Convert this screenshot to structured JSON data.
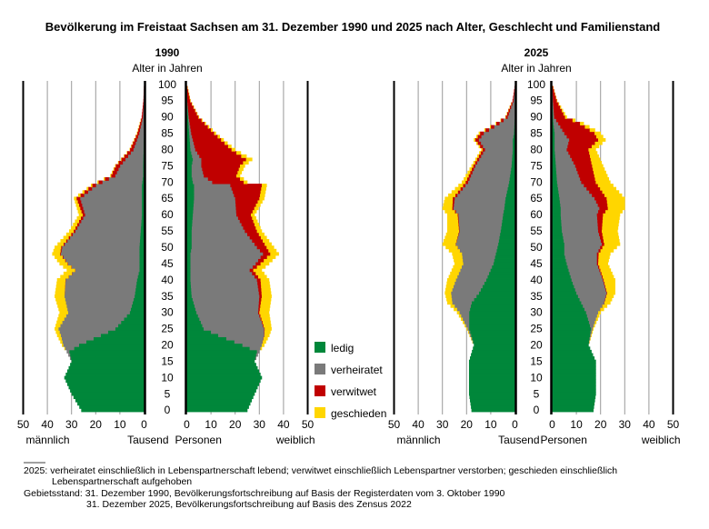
{
  "title": "Bevölkerung im Freistaat Sachsen am 31. Dezember 1990 und 2025 nach Alter, Geschlecht und Familienstand",
  "colors": {
    "ledig": "#00873a",
    "verheiratet": "#7a7a7a",
    "verwitwet": "#c00000",
    "geschieden": "#ffd600",
    "grid": "#9a9a9a",
    "axis": "#000000"
  },
  "labels": {
    "age_axis": "Alter in Jahren",
    "male": "männlich",
    "female": "weiblich",
    "unit_left": "Tausend",
    "unit_right": "Personen"
  },
  "legend": [
    {
      "key": "ledig",
      "label": "ledig"
    },
    {
      "key": "verheiratet",
      "label": "verheiratet"
    },
    {
      "key": "verwitwet",
      "label": "verwitwet"
    },
    {
      "key": "geschieden",
      "label": "geschieden"
    }
  ],
  "notes": {
    "n1": "2025: verheiratet einschließlich in Lebenspartnerschaft lebend; verwitwet einschließlich Lebenspartner verstorben; geschieden einschließlich",
    "n1b": "Lebenspartnerschaft aufgehoben",
    "n2": "Gebietsstand: 31. Dezember 1990, Bevölkerungsfortschreibung auf Basis der Registerdaten vom 3. Oktober 1990",
    "n3": "31. Dezember 2025, Bevölkerungsfortschreibung auf Basis des Zensus 2022"
  },
  "chart_data": [
    {
      "type": "population_pyramid",
      "year": "1990",
      "age_ticks": [
        0,
        5,
        10,
        15,
        20,
        25,
        30,
        35,
        40,
        45,
        50,
        55,
        60,
        65,
        70,
        75,
        80,
        85,
        90,
        95,
        100
      ],
      "x_ticks": [
        0,
        10,
        20,
        30,
        40,
        50
      ],
      "xlim": [
        0,
        50
      ],
      "unit": "Tausend Personen",
      "male": {
        "ages": [
          0,
          5,
          10,
          15,
          18,
          20,
          23,
          25,
          30,
          35,
          40,
          43,
          45,
          48,
          50,
          55,
          60,
          65,
          69,
          72,
          75,
          80,
          85,
          90,
          95,
          100
        ],
        "total": [
          26,
          30,
          33,
          30,
          32,
          34,
          36,
          37,
          35,
          37,
          36,
          32,
          35,
          38,
          37,
          31,
          27,
          29,
          22,
          14,
          12,
          6,
          3,
          1,
          0.3,
          0
        ],
        "ledig": [
          26,
          30,
          33,
          30,
          31,
          27,
          18,
          12,
          6,
          4,
          3,
          2,
          2,
          2,
          2,
          1.5,
          1,
          1,
          1,
          0.5,
          0.5,
          0.3,
          0.1,
          0,
          0,
          0
        ],
        "verheiratet": [
          0,
          0,
          0,
          0,
          1,
          6.5,
          16.5,
          23.5,
          25.5,
          29,
          29.5,
          26.5,
          29.5,
          32.5,
          32,
          27,
          23.5,
          25.5,
          19,
          11.5,
          9.5,
          4.2,
          2,
          0.6,
          0.2,
          0
        ],
        "verwitwet": [
          0,
          0,
          0,
          0,
          0,
          0,
          0,
          0,
          0,
          0,
          0.1,
          0.1,
          0.2,
          0.3,
          0.4,
          0.7,
          1,
          1.5,
          1.5,
          1.7,
          1.8,
          1.4,
          0.8,
          0.4,
          0.1,
          0
        ],
        "geschieden": [
          0,
          0,
          0,
          0,
          0,
          0.5,
          1.5,
          1.5,
          3.5,
          4,
          3.4,
          3.4,
          3.3,
          3.2,
          2.6,
          1.8,
          1.5,
          1,
          0.5,
          0.3,
          0.2,
          0.1,
          0.1,
          0,
          0,
          0
        ]
      },
      "female": {
        "ages": [
          0,
          5,
          10,
          15,
          18,
          20,
          23,
          25,
          30,
          35,
          40,
          43,
          45,
          48,
          50,
          55,
          60,
          65,
          69,
          70,
          72,
          75,
          77,
          80,
          85,
          90,
          95,
          100
        ],
        "total": [
          25,
          28,
          31,
          28,
          30,
          32,
          34,
          35,
          34,
          35,
          34,
          31,
          34,
          38,
          36,
          31,
          28,
          32,
          33,
          25,
          22,
          24,
          27,
          20,
          12,
          5,
          1.5,
          0
        ],
        "ledig": [
          25,
          28,
          31,
          28,
          29,
          23,
          13,
          7,
          4,
          2,
          1.5,
          1.5,
          1.5,
          1.5,
          2,
          2,
          2.5,
          3,
          3,
          2.5,
          2,
          2,
          2.5,
          1.5,
          1,
          0.5,
          0.1,
          0
        ],
        "verheiratet": [
          0,
          0,
          0,
          0,
          1,
          8,
          19,
          25,
          25.5,
          28,
          27.5,
          24.5,
          27,
          30,
          27,
          22,
          18,
          17,
          15,
          8,
          5,
          4,
          3.5,
          2,
          0.8,
          0.3,
          0.1,
          0
        ],
        "verwitwet": [
          0,
          0,
          0,
          0,
          0,
          0,
          0.1,
          0.2,
          0.5,
          1,
          1.5,
          1.5,
          2,
          3,
          4,
          5,
          6,
          10,
          13,
          13,
          13.5,
          16,
          18.5,
          15,
          9.5,
          4,
          1.2,
          0
        ],
        "geschieden": [
          0,
          0,
          0,
          0,
          0,
          1,
          2,
          2.8,
          4,
          4,
          3.5,
          3.5,
          3.5,
          3.5,
          3,
          2,
          1.5,
          2,
          2,
          1.5,
          1.5,
          2,
          2.5,
          1.5,
          0.7,
          0.2,
          0.1,
          0
        ]
      }
    },
    {
      "type": "population_pyramid",
      "year": "2025",
      "age_ticks": [
        0,
        5,
        10,
        15,
        20,
        25,
        30,
        35,
        40,
        45,
        50,
        55,
        60,
        65,
        70,
        75,
        80,
        85,
        90,
        95,
        100
      ],
      "x_ticks": [
        0,
        10,
        20,
        30,
        40,
        50
      ],
      "xlim": [
        0,
        50
      ],
      "unit": "Tausend Personen",
      "male": {
        "ages": [
          0,
          5,
          10,
          15,
          20,
          25,
          30,
          33,
          36,
          40,
          45,
          48,
          51,
          55,
          60,
          62,
          65,
          70,
          75,
          80,
          83,
          85,
          88,
          90,
          95,
          100
        ],
        "total": [
          18,
          19,
          19,
          19,
          17,
          20,
          24,
          28,
          29,
          28,
          25,
          26,
          30,
          28,
          28,
          30,
          29,
          22,
          18,
          14,
          17,
          15,
          8,
          4,
          1,
          0
        ],
        "ledig": [
          18,
          19,
          19,
          19,
          17,
          19,
          19,
          18,
          15,
          12,
          9,
          8,
          7,
          6,
          5,
          4.5,
          4,
          2.5,
          1.5,
          1,
          1,
          0.5,
          0.3,
          0.1,
          0,
          0
        ],
        "verheiratet": [
          0,
          0,
          0,
          0,
          0,
          0.7,
          4,
          8,
          11.5,
          12.5,
          12.5,
          14,
          17.5,
          17,
          18.5,
          21,
          21,
          17,
          15,
          11.5,
          14,
          12.5,
          6.2,
          3,
          0.7,
          0
        ],
        "verwitwet": [
          0,
          0,
          0,
          0,
          0,
          0,
          0,
          0,
          0,
          0,
          0,
          0,
          0.1,
          0.2,
          0.3,
          0.5,
          0.8,
          1,
          0.8,
          1,
          1.5,
          1.5,
          1.3,
          0.8,
          0.3,
          0
        ],
        "geschieden": [
          0,
          0,
          0,
          0,
          0,
          0.3,
          1,
          2,
          2.5,
          3.5,
          3.5,
          4,
          5.4,
          4.8,
          4.2,
          4,
          3.2,
          1.5,
          0.7,
          0.5,
          0.5,
          0.5,
          0.2,
          0.1,
          0,
          0
        ]
      },
      "female": {
        "ages": [
          0,
          5,
          10,
          15,
          20,
          25,
          30,
          33,
          36,
          40,
          45,
          48,
          51,
          55,
          60,
          62,
          65,
          70,
          75,
          80,
          83,
          85,
          88,
          90,
          95,
          100
        ],
        "total": [
          17,
          18,
          18,
          18,
          15,
          17,
          20,
          24,
          26,
          26,
          23,
          24,
          28,
          27,
          28,
          30,
          30,
          24,
          21,
          18,
          22,
          20,
          13,
          6,
          2,
          0
        ],
        "ledig": [
          17,
          18,
          18,
          18,
          15,
          16,
          14,
          12,
          10,
          8,
          6,
          5,
          5,
          4,
          3.5,
          3.5,
          3,
          2,
          1.5,
          1,
          1,
          1,
          0.5,
          0.3,
          0.1,
          0
        ],
        "verheiratet": [
          0,
          0,
          0,
          0,
          0,
          0.7,
          5,
          9.5,
          12.5,
          13,
          12.5,
          13.5,
          15.5,
          15,
          15,
          16,
          14.5,
          10,
          8,
          5,
          6,
          4,
          2,
          0.5,
          0.2,
          0
        ],
        "verwitwet": [
          0,
          0,
          0,
          0,
          0,
          0,
          0,
          0.1,
          0.2,
          0.3,
          0.5,
          0.7,
          1,
          1.5,
          2.5,
          3.5,
          5,
          6,
          7,
          9,
          12,
          12.5,
          9,
          4.5,
          1.6,
          0
        ],
        "geschieden": [
          0,
          0,
          0,
          0,
          0,
          0.3,
          1,
          2.4,
          3.3,
          4.7,
          4,
          4.8,
          6.5,
          6.5,
          7,
          7,
          7.5,
          6,
          4.5,
          3,
          3,
          2.5,
          1.5,
          0.7,
          0.1,
          0
        ]
      }
    }
  ]
}
